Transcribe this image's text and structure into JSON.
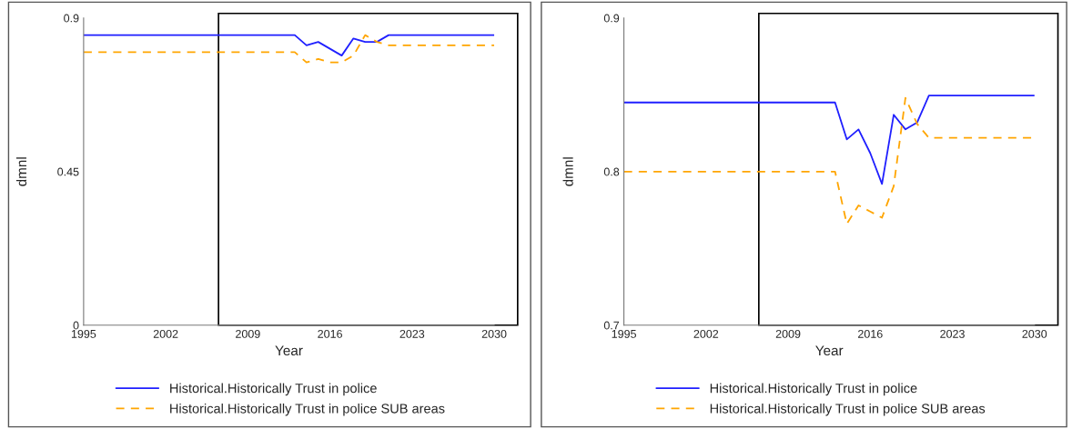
{
  "chart_data": [
    {
      "type": "line",
      "xlabel": "Year",
      "ylabel": "dmnl",
      "xlim": [
        1995,
        2030
      ],
      "xticks": [
        1995,
        2002,
        2009,
        2016,
        2023,
        2030
      ],
      "ylim": [
        0,
        0.9
      ],
      "yticks": [
        0,
        0.45,
        0.9
      ],
      "grid": false,
      "legend": "bottom",
      "x": [
        1995,
        2013,
        2014,
        2015,
        2016,
        2017,
        2018,
        2019,
        2020,
        2021,
        2030
      ],
      "series": [
        {
          "name": "Historical.Historically Trust in police",
          "color": "#1f1fff",
          "line_style": "solid",
          "values": [
            0.85,
            0.85,
            0.82,
            0.83,
            0.81,
            0.79,
            0.84,
            0.83,
            0.83,
            0.85,
            0.85
          ]
        },
        {
          "name": "Historical.Historically Trust in police SUB areas",
          "color": "#ffa500",
          "line_style": "dashed",
          "values": [
            0.8,
            0.8,
            0.77,
            0.78,
            0.77,
            0.77,
            0.79,
            0.85,
            0.83,
            0.82,
            0.82
          ]
        }
      ]
    },
    {
      "type": "line",
      "xlabel": "Year",
      "ylabel": "dmnl",
      "xlim": [
        1995,
        2030
      ],
      "xticks": [
        1995,
        2002,
        2009,
        2016,
        2023,
        2030
      ],
      "ylim": [
        0.7,
        0.9
      ],
      "yticks": [
        0.7,
        0.8,
        0.9
      ],
      "grid": false,
      "legend": "bottom",
      "x": [
        1995,
        2013,
        2014,
        2015,
        2016,
        2017,
        2018,
        2019,
        2020,
        2021,
        2030
      ],
      "series": [
        {
          "name": "Historical.Historically Trust in police",
          "color": "#1f1fff",
          "line_style": "solid",
          "values": [
            0.845,
            0.845,
            0.821,
            0.8275,
            0.812,
            0.792,
            0.837,
            0.8275,
            0.832,
            0.8495,
            0.8495
          ]
        },
        {
          "name": "Historical.Historically Trust in police SUB areas",
          "color": "#ffa500",
          "line_style": "dashed",
          "values": [
            0.8,
            0.8,
            0.766,
            0.778,
            0.774,
            0.77,
            0.7905,
            0.848,
            0.831,
            0.822,
            0.822
          ]
        }
      ]
    }
  ]
}
